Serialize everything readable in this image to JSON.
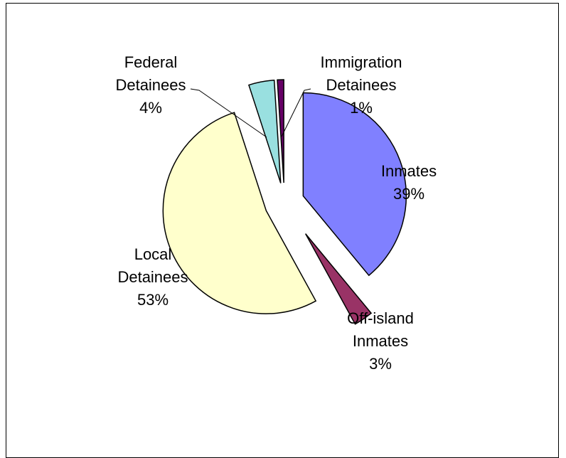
{
  "chart_data": {
    "type": "pie",
    "title": "",
    "start_angle_deg": 0,
    "slices": [
      {
        "name": "Inmates",
        "value": 39,
        "percent_label": "39%",
        "label_lines": [
          "Inmates"
        ],
        "color": "#8080FF",
        "explode": 0.0
      },
      {
        "name": "Off-island Inmates",
        "value": 3,
        "percent_label": "3%",
        "label_lines": [
          "Off-island",
          "Inmates"
        ],
        "color": "#993366",
        "explode": 0.55
      },
      {
        "name": "Local Detainees",
        "value": 53,
        "percent_label": "53%",
        "label_lines": [
          "Local",
          "Detainees"
        ],
        "color": "#FFFFCC",
        "explode": 0.0
      },
      {
        "name": "Federal Detainees",
        "value": 4,
        "percent_label": "4%",
        "label_lines": [
          "Federal",
          "Detainees"
        ],
        "color": "#99E0E0",
        "explode": 0.0
      },
      {
        "name": "Immigration Detainees",
        "value": 1,
        "percent_label": "1%",
        "label_lines": [
          "Immigration",
          "Detainees"
        ],
        "color": "#660066",
        "explode": 0.0
      }
    ]
  }
}
